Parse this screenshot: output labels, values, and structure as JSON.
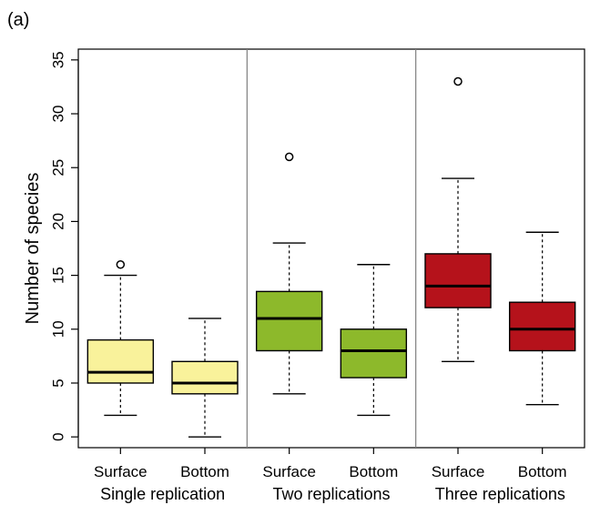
{
  "chart_data": {
    "type": "box",
    "panel_label": "(a)",
    "ylabel": "Number of species",
    "ylim": [
      -1,
      36
    ],
    "yticks": [
      0,
      5,
      10,
      15,
      20,
      25,
      30,
      35
    ],
    "groups": [
      {
        "label": "Single replication",
        "color": "#f9f29b"
      },
      {
        "label": "Two replications",
        "color": "#8db92b"
      },
      {
        "label": "Three replications",
        "color": "#b5121b"
      }
    ],
    "boxes": [
      {
        "label": "Surface",
        "group": 0,
        "min": 2,
        "q1": 5,
        "median": 6,
        "q3": 9,
        "max": 15,
        "outliers": [
          16
        ]
      },
      {
        "label": "Bottom",
        "group": 0,
        "min": 0,
        "q1": 4,
        "median": 5,
        "q3": 7,
        "max": 11,
        "outliers": []
      },
      {
        "label": "Surface",
        "group": 1,
        "min": 4,
        "q1": 8,
        "median": 11,
        "q3": 13.5,
        "max": 18,
        "outliers": [
          26
        ]
      },
      {
        "label": "Bottom",
        "group": 1,
        "min": 2,
        "q1": 5.5,
        "median": 8,
        "q3": 10,
        "max": 16,
        "outliers": []
      },
      {
        "label": "Surface",
        "group": 2,
        "min": 7,
        "q1": 12,
        "median": 14,
        "q3": 17,
        "max": 24,
        "outliers": [
          33
        ]
      },
      {
        "label": "Bottom",
        "group": 2,
        "min": 3,
        "q1": 8,
        "median": 10,
        "q3": 12.5,
        "max": 19,
        "outliers": []
      }
    ]
  }
}
